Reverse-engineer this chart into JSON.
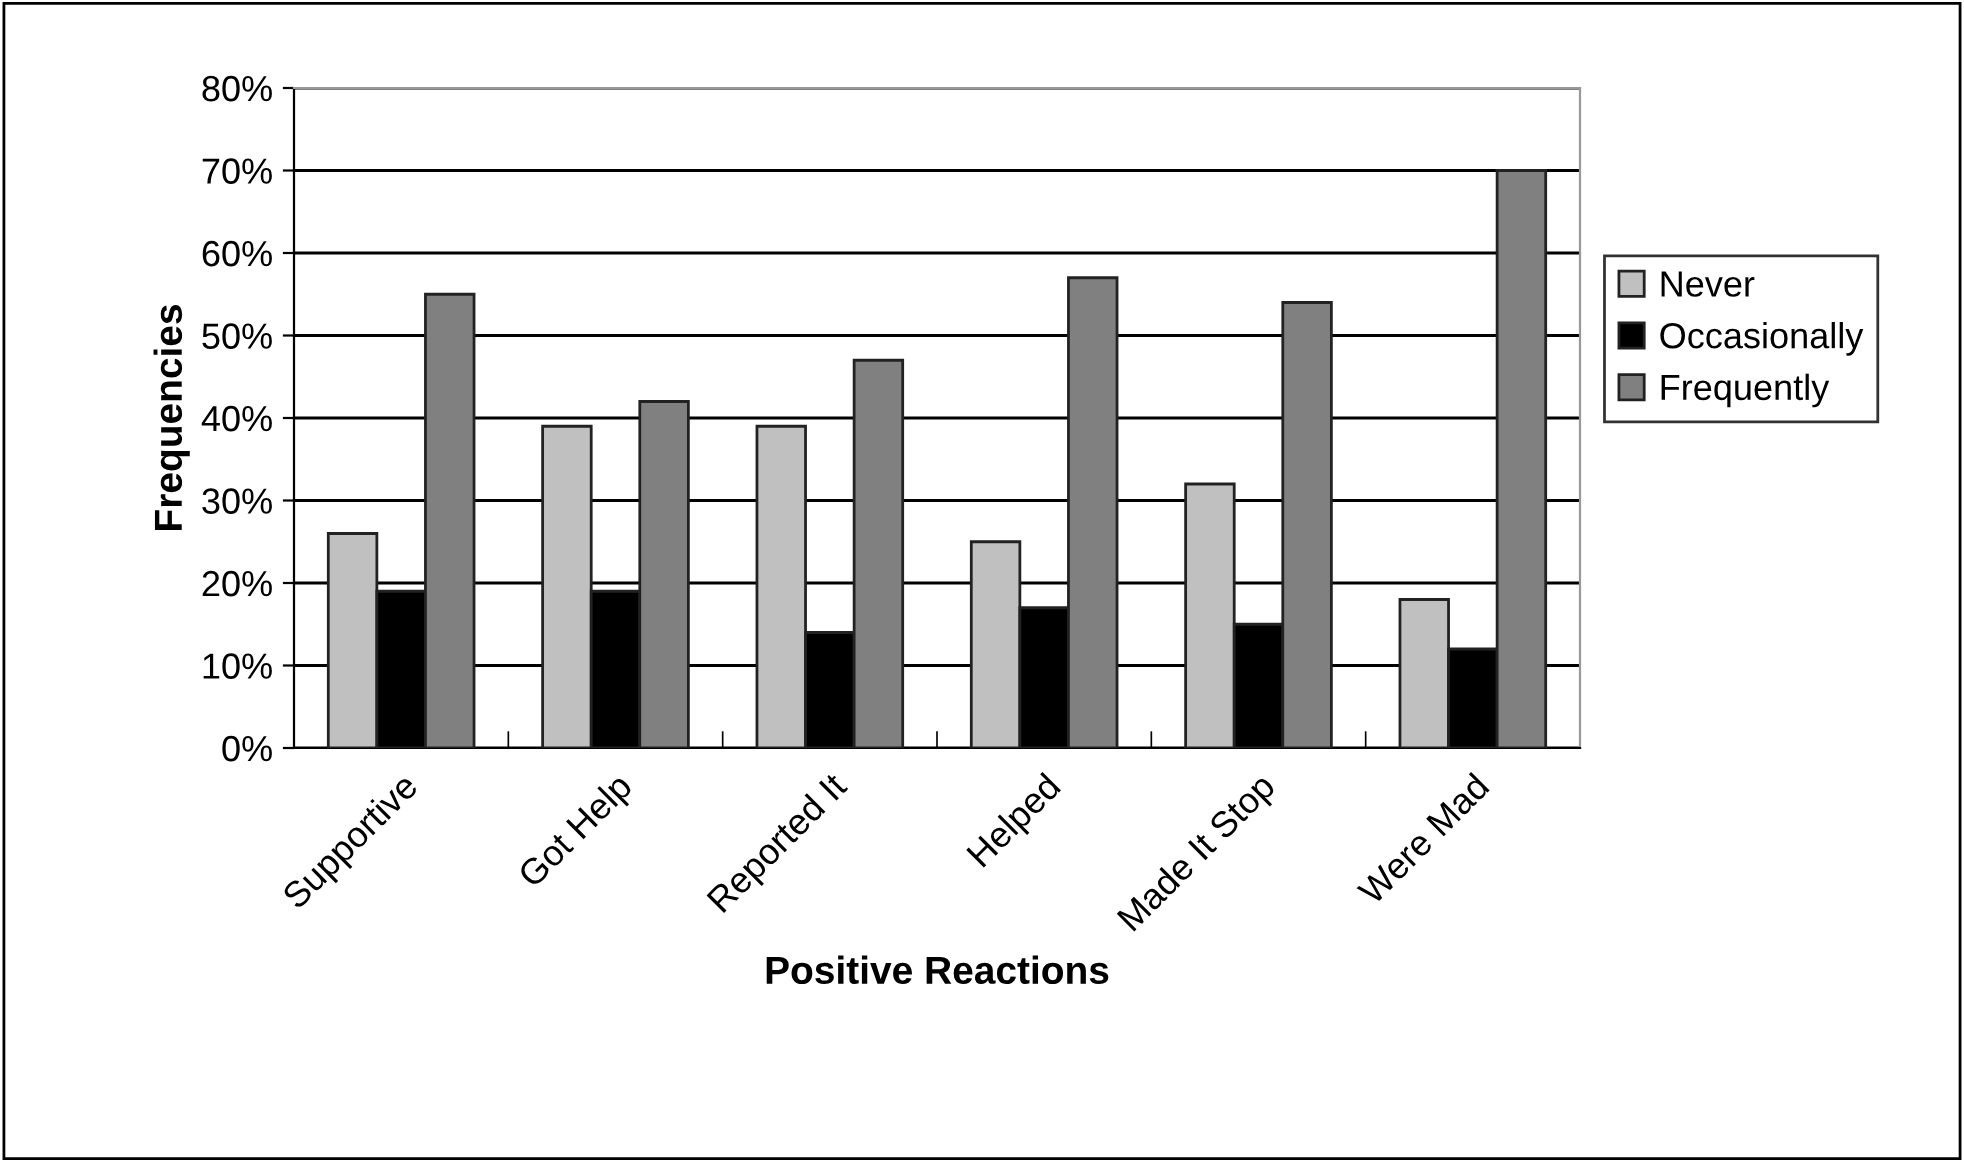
{
  "chart_data": {
    "type": "bar",
    "xlabel": "Positive Reactions",
    "ylabel": "Frequencies",
    "categories": [
      "Supportive",
      "Got Help",
      "Reported It",
      "Helped",
      "Made It Stop",
      "Were Mad"
    ],
    "series": [
      {
        "name": "Never",
        "color": "#c0c0c0",
        "values": [
          26,
          39,
          39,
          25,
          32,
          18
        ]
      },
      {
        "name": "Occasionally",
        "color": "#000000",
        "values": [
          19,
          19,
          14,
          17,
          15,
          12
        ]
      },
      {
        "name": "Frequently",
        "color": "#808080",
        "values": [
          55,
          42,
          47,
          57,
          54,
          70
        ]
      }
    ],
    "ylim": [
      0,
      80
    ],
    "yticks": [
      {
        "value": 0,
        "label": "0%"
      },
      {
        "value": 10,
        "label": "10%"
      },
      {
        "value": 20,
        "label": "20%"
      },
      {
        "value": 30,
        "label": "30%"
      },
      {
        "value": 40,
        "label": "40%"
      },
      {
        "value": 50,
        "label": "50%"
      },
      {
        "value": 60,
        "label": "60%"
      },
      {
        "value": 70,
        "label": "70%"
      },
      {
        "value": 80,
        "label": "80%"
      }
    ],
    "grid": "y",
    "legend": "right"
  }
}
